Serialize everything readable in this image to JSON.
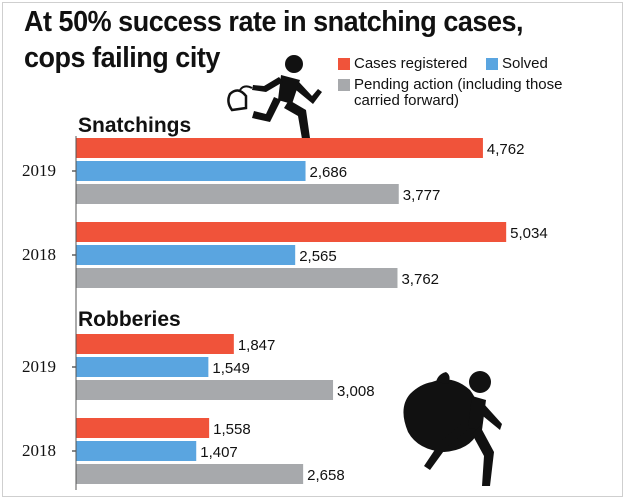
{
  "title_line1": "At 50% success rate in snatching cases,",
  "title_line2": "cops failing city",
  "legend": {
    "cases": "Cases registered",
    "solved": "Solved",
    "pending": "Pending action (including those carried forward)"
  },
  "colors": {
    "cases": "#f0533a",
    "solved": "#5aa5e0",
    "pending": "#a7a9ac"
  },
  "icons": [
    "running-snatcher-icon",
    "running-robber-icon"
  ],
  "chart_data": {
    "type": "bar",
    "orientation": "horizontal",
    "title": "At 50% success rate in snatching cases, cops failing city",
    "series_order": [
      "Cases registered",
      "Solved",
      "Pending action (including those carried forward)"
    ],
    "value_max": 5500,
    "groups": [
      {
        "name": "Snatchings",
        "years": [
          {
            "year": "2019",
            "values": [
              4762,
              2686,
              3777
            ],
            "labels": [
              "4,762",
              "2,686",
              "3,777"
            ]
          },
          {
            "year": "2018",
            "values": [
              5034,
              2565,
              3762
            ],
            "labels": [
              "5,034",
              "2,565",
              "3,762"
            ]
          }
        ]
      },
      {
        "name": "Robberies",
        "years": [
          {
            "year": "2019",
            "values": [
              1847,
              1549,
              3008
            ],
            "labels": [
              "1,847",
              "1,549",
              "3,008"
            ]
          },
          {
            "year": "2018",
            "values": [
              1558,
              1407,
              2658
            ],
            "labels": [
              "1,558",
              "1,407",
              "2,658"
            ]
          }
        ]
      }
    ]
  }
}
